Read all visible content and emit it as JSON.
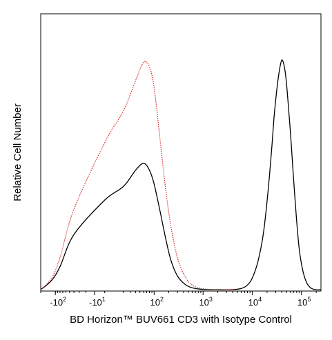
{
  "chart_data": {
    "type": "line",
    "title": "",
    "xlabel": "BD Horizon™ BUV661 CD3 with Isotype Control",
    "ylabel": "Relative Cell Number",
    "x_scale": "biexponential",
    "xlim": [
      -200,
      250000
    ],
    "ylim": [
      0,
      1.0
    ],
    "grid": false,
    "legend": "none",
    "x_ticks": [
      {
        "base": "-10",
        "exp": "2",
        "value": -100
      },
      {
        "base": "-10",
        "exp": "1",
        "value": -10
      },
      {
        "base": "10",
        "exp": "2",
        "value": 100
      },
      {
        "base": "10",
        "exp": "3",
        "value": 1000
      },
      {
        "base": "10",
        "exp": "4",
        "value": 10000
      },
      {
        "base": "10",
        "exp": "5",
        "value": 100000
      }
    ],
    "series": [
      {
        "color": "#000000",
        "dash": "solid",
        "x": [
          -200,
          -120,
          -80,
          -40,
          0,
          20,
          40,
          60,
          80,
          100,
          130,
          170,
          220,
          300,
          420,
          600,
          1000,
          2000,
          4000,
          6000,
          8000,
          10000,
          13000,
          17000,
          21000,
          25000,
          28000,
          32000,
          36000,
          40000,
          44000,
          48000,
          53000,
          60000,
          68000,
          78000,
          90000,
          105000,
          125000,
          150000,
          190000,
          250000
        ],
        "y": [
          0.0,
          0.04,
          0.1,
          0.24,
          0.39,
          0.45,
          0.52,
          0.55,
          0.52,
          0.46,
          0.35,
          0.23,
          0.13,
          0.06,
          0.025,
          0.008,
          0.001,
          0.0,
          0.0,
          0.005,
          0.02,
          0.05,
          0.12,
          0.25,
          0.43,
          0.62,
          0.76,
          0.88,
          0.96,
          1.0,
          0.98,
          0.93,
          0.83,
          0.68,
          0.51,
          0.33,
          0.18,
          0.09,
          0.035,
          0.01,
          0.0,
          0.0
        ]
      },
      {
        "color": "#d42a2a",
        "dash": "dotted",
        "x": [
          -200,
          -120,
          -80,
          -40,
          0,
          20,
          40,
          60,
          80,
          100,
          130,
          170,
          220,
          300,
          420,
          600,
          1000,
          2000,
          4000
        ],
        "y": [
          0.0,
          0.05,
          0.14,
          0.35,
          0.64,
          0.78,
          0.91,
          0.99,
          0.97,
          0.88,
          0.67,
          0.45,
          0.28,
          0.14,
          0.06,
          0.02,
          0.004,
          0.0,
          0.0
        ]
      }
    ]
  }
}
